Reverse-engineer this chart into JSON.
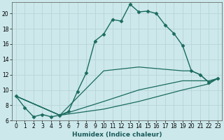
{
  "xlabel": "Humidex (Indice chaleur)",
  "bg_color": "#cce8eb",
  "grid_color": "#b8d4d8",
  "line_color": "#1a6b5e",
  "xlim": [
    -0.5,
    23.5
  ],
  "ylim": [
    6,
    21.5
  ],
  "yticks": [
    6,
    8,
    10,
    12,
    14,
    16,
    18,
    20
  ],
  "xticks": [
    0,
    1,
    2,
    3,
    4,
    5,
    6,
    7,
    8,
    9,
    10,
    11,
    12,
    13,
    14,
    15,
    16,
    17,
    18,
    19,
    20,
    21,
    22,
    23
  ],
  "lines": [
    {
      "x": [
        0,
        1,
        2,
        3,
        4,
        5,
        6,
        7,
        8,
        9,
        10,
        11,
        12,
        13,
        14,
        15,
        16,
        17,
        18,
        19,
        20,
        21,
        22,
        23
      ],
      "y": [
        9.2,
        7.7,
        6.5,
        6.8,
        6.5,
        6.7,
        7.2,
        9.8,
        12.2,
        16.4,
        17.3,
        19.2,
        19.0,
        21.2,
        20.2,
        20.3,
        20.0,
        18.5,
        17.4,
        15.8,
        12.5,
        12.0,
        11.0,
        11.5
      ],
      "marker": "D",
      "markersize": 2.5,
      "linewidth": 1.0
    },
    {
      "x": [
        0,
        5,
        10,
        14,
        19,
        20,
        21,
        22,
        23
      ],
      "y": [
        9.2,
        6.7,
        12.5,
        13.0,
        12.5,
        12.5,
        12.0,
        11.0,
        11.5
      ],
      "marker": null,
      "markersize": 0,
      "linewidth": 0.9
    },
    {
      "x": [
        0,
        5,
        10,
        14,
        19,
        22,
        23
      ],
      "y": [
        9.2,
        6.7,
        8.5,
        10.0,
        11.2,
        11.2,
        11.5
      ],
      "marker": null,
      "markersize": 0,
      "linewidth": 0.9
    },
    {
      "x": [
        0,
        5,
        10,
        14,
        19,
        22,
        23
      ],
      "y": [
        9.2,
        6.7,
        7.5,
        8.5,
        10.0,
        10.8,
        11.5
      ],
      "marker": null,
      "markersize": 0,
      "linewidth": 0.9
    }
  ]
}
